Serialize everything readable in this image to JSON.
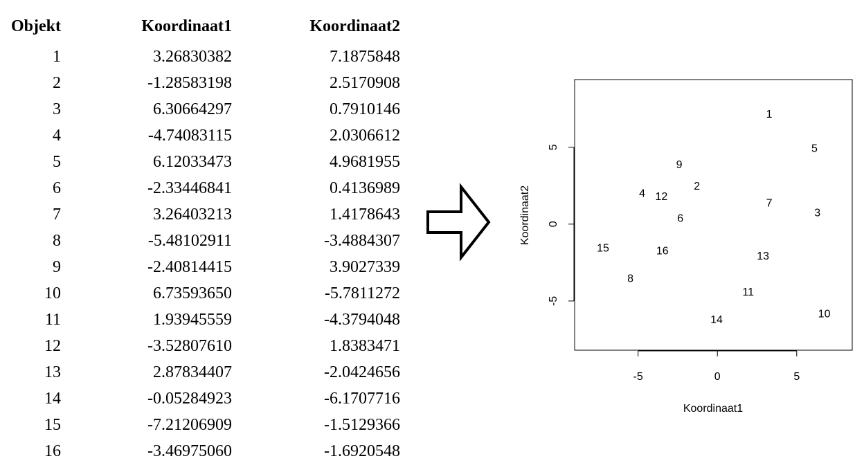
{
  "table": {
    "headers": [
      "Objekt",
      "Koordinaat1",
      "Koordinaat2"
    ],
    "rows": [
      [
        "1",
        "3.26830382",
        "7.1875848"
      ],
      [
        "2",
        "-1.28583198",
        "2.5170908"
      ],
      [
        "3",
        "6.30664297",
        "0.7910146"
      ],
      [
        "4",
        "-4.74083115",
        "2.0306612"
      ],
      [
        "5",
        "6.12033473",
        "4.9681955"
      ],
      [
        "6",
        "-2.33446841",
        "0.4136989"
      ],
      [
        "7",
        "3.26403213",
        "1.4178643"
      ],
      [
        "8",
        "-5.48102911",
        "-3.4884307"
      ],
      [
        "9",
        "-2.40814415",
        "3.9027339"
      ],
      [
        "10",
        "6.73593650",
        "-5.7811272"
      ],
      [
        "11",
        "1.93945559",
        "-4.3794048"
      ],
      [
        "12",
        "-3.52807610",
        "1.8383471"
      ],
      [
        "13",
        "2.87834407",
        "-2.0424656"
      ],
      [
        "14",
        "-0.05284923",
        "-6.1707716"
      ],
      [
        "15",
        "-7.21206909",
        "-1.5129366"
      ],
      [
        "16",
        "-3.46975060",
        "-1.6920548"
      ]
    ]
  },
  "arrow": {
    "icon": "right-arrow-outline-icon"
  },
  "chart_data": {
    "type": "scatter",
    "marker": "text-label",
    "points": [
      {
        "label": "1",
        "x": 3.26830382,
        "y": 7.1875848
      },
      {
        "label": "2",
        "x": -1.28583198,
        "y": 2.5170908
      },
      {
        "label": "3",
        "x": 6.30664297,
        "y": 0.7910146
      },
      {
        "label": "4",
        "x": -4.74083115,
        "y": 2.0306612
      },
      {
        "label": "5",
        "x": 6.12033473,
        "y": 4.9681955
      },
      {
        "label": "6",
        "x": -2.33446841,
        "y": 0.4136989
      },
      {
        "label": "7",
        "x": 3.26403213,
        "y": 1.4178643
      },
      {
        "label": "8",
        "x": -5.48102911,
        "y": -3.4884307
      },
      {
        "label": "9",
        "x": -2.40814415,
        "y": 3.9027339
      },
      {
        "label": "10",
        "x": 6.7359365,
        "y": -5.7811272
      },
      {
        "label": "11",
        "x": 1.93945559,
        "y": -4.3794048
      },
      {
        "label": "12",
        "x": -3.5280761,
        "y": 1.8383471
      },
      {
        "label": "13",
        "x": 2.87834407,
        "y": -2.0424656
      },
      {
        "label": "14",
        "x": -0.05284923,
        "y": -6.1707716
      },
      {
        "label": "15",
        "x": -7.21206909,
        "y": -1.5129366
      },
      {
        "label": "16",
        "x": -3.4697506,
        "y": -1.6920548
      }
    ],
    "xlabel": "Koordinaat1",
    "ylabel": "Koordinaat2",
    "xlim": [
      -9.0,
      8.5
    ],
    "ylim": [
      -8.2,
      9.4
    ],
    "xticks": [
      -5,
      0,
      5
    ],
    "yticks": [
      -5,
      0,
      5
    ],
    "grid": false
  }
}
